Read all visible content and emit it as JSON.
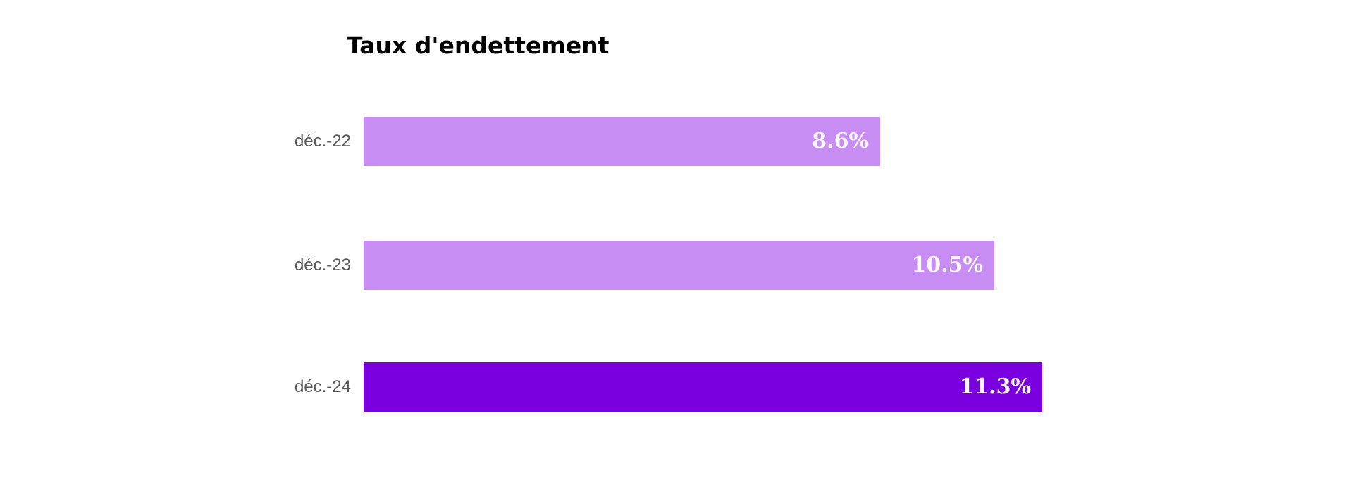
{
  "chart_data": {
    "type": "bar",
    "orientation": "horizontal",
    "title": "Taux d'endettement",
    "categories": [
      "déc.-22",
      "déc.-23",
      "déc.-24"
    ],
    "values": [
      8.6,
      10.5,
      11.3
    ],
    "value_labels": [
      "8.6%",
      "10.5%",
      "11.3%"
    ],
    "series": [
      {
        "name": "Taux d'endettement",
        "values": [
          8.6,
          10.5,
          11.3
        ]
      }
    ],
    "unit": "%",
    "grid": false,
    "axes_visible": false,
    "legend": false,
    "value_labels_position": "inside-end",
    "colors": {
      "bar_default": "#c88df2",
      "bar_highlight": "#7a00e0",
      "bar_colors": [
        "#c88df2",
        "#c88df2",
        "#7a00e0"
      ],
      "value_label": "#fbf7ff",
      "category_label": "#595959",
      "title": "#000000",
      "background": "#ffffff"
    }
  }
}
